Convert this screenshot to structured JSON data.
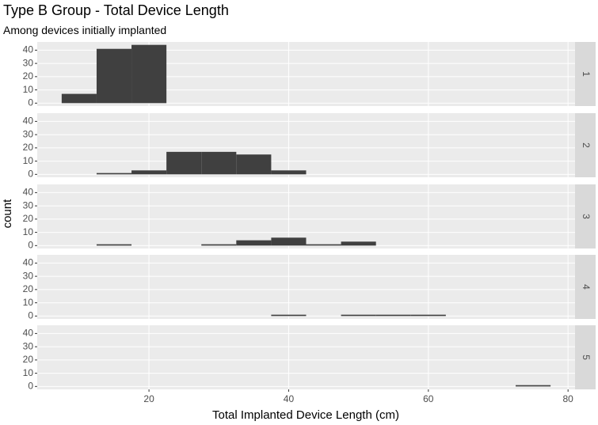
{
  "chart_data": {
    "type": "histogram",
    "title": "Type B Group - Total Device Length",
    "subtitle": "Among devices initially implanted",
    "xlabel": "Total Implanted Device Length (cm)",
    "ylabel": "count",
    "bins": [
      7.5,
      12.5,
      17.5,
      22.5,
      27.5,
      32.5,
      37.5,
      42.5,
      47.5,
      52.5,
      57.5,
      62.5,
      67.5,
      72.5,
      77.5
    ],
    "series": [
      {
        "name": "1",
        "color": "#404040",
        "values": [
          7,
          41,
          44,
          0,
          0,
          0,
          0,
          0,
          0,
          0,
          0,
          0,
          0,
          0
        ]
      },
      {
        "name": "2",
        "color": "#404040",
        "values": [
          0,
          1,
          3,
          17,
          17,
          15,
          3,
          0,
          0,
          0,
          0,
          0,
          0,
          0
        ]
      },
      {
        "name": "3",
        "color": "#404040",
        "values": [
          0,
          1,
          0,
          0,
          1,
          4,
          6,
          1,
          3,
          0,
          0,
          0,
          0,
          0
        ]
      },
      {
        "name": "4",
        "color": "#404040",
        "values": [
          0,
          0,
          0,
          0,
          0,
          0,
          1,
          0,
          1,
          1,
          1,
          0,
          0,
          0
        ]
      },
      {
        "name": "5",
        "color": "#404040",
        "values": [
          0,
          0,
          0,
          0,
          0,
          0,
          0,
          0,
          0,
          0,
          0,
          0,
          0,
          1
        ]
      }
    ],
    "xlim": [
      4,
      81
    ],
    "xticks": [
      20,
      40,
      60,
      80
    ],
    "ylim": [
      -2.2,
      46.2
    ],
    "yticks": [
      0,
      10,
      20,
      30,
      40
    ],
    "grid": true
  }
}
